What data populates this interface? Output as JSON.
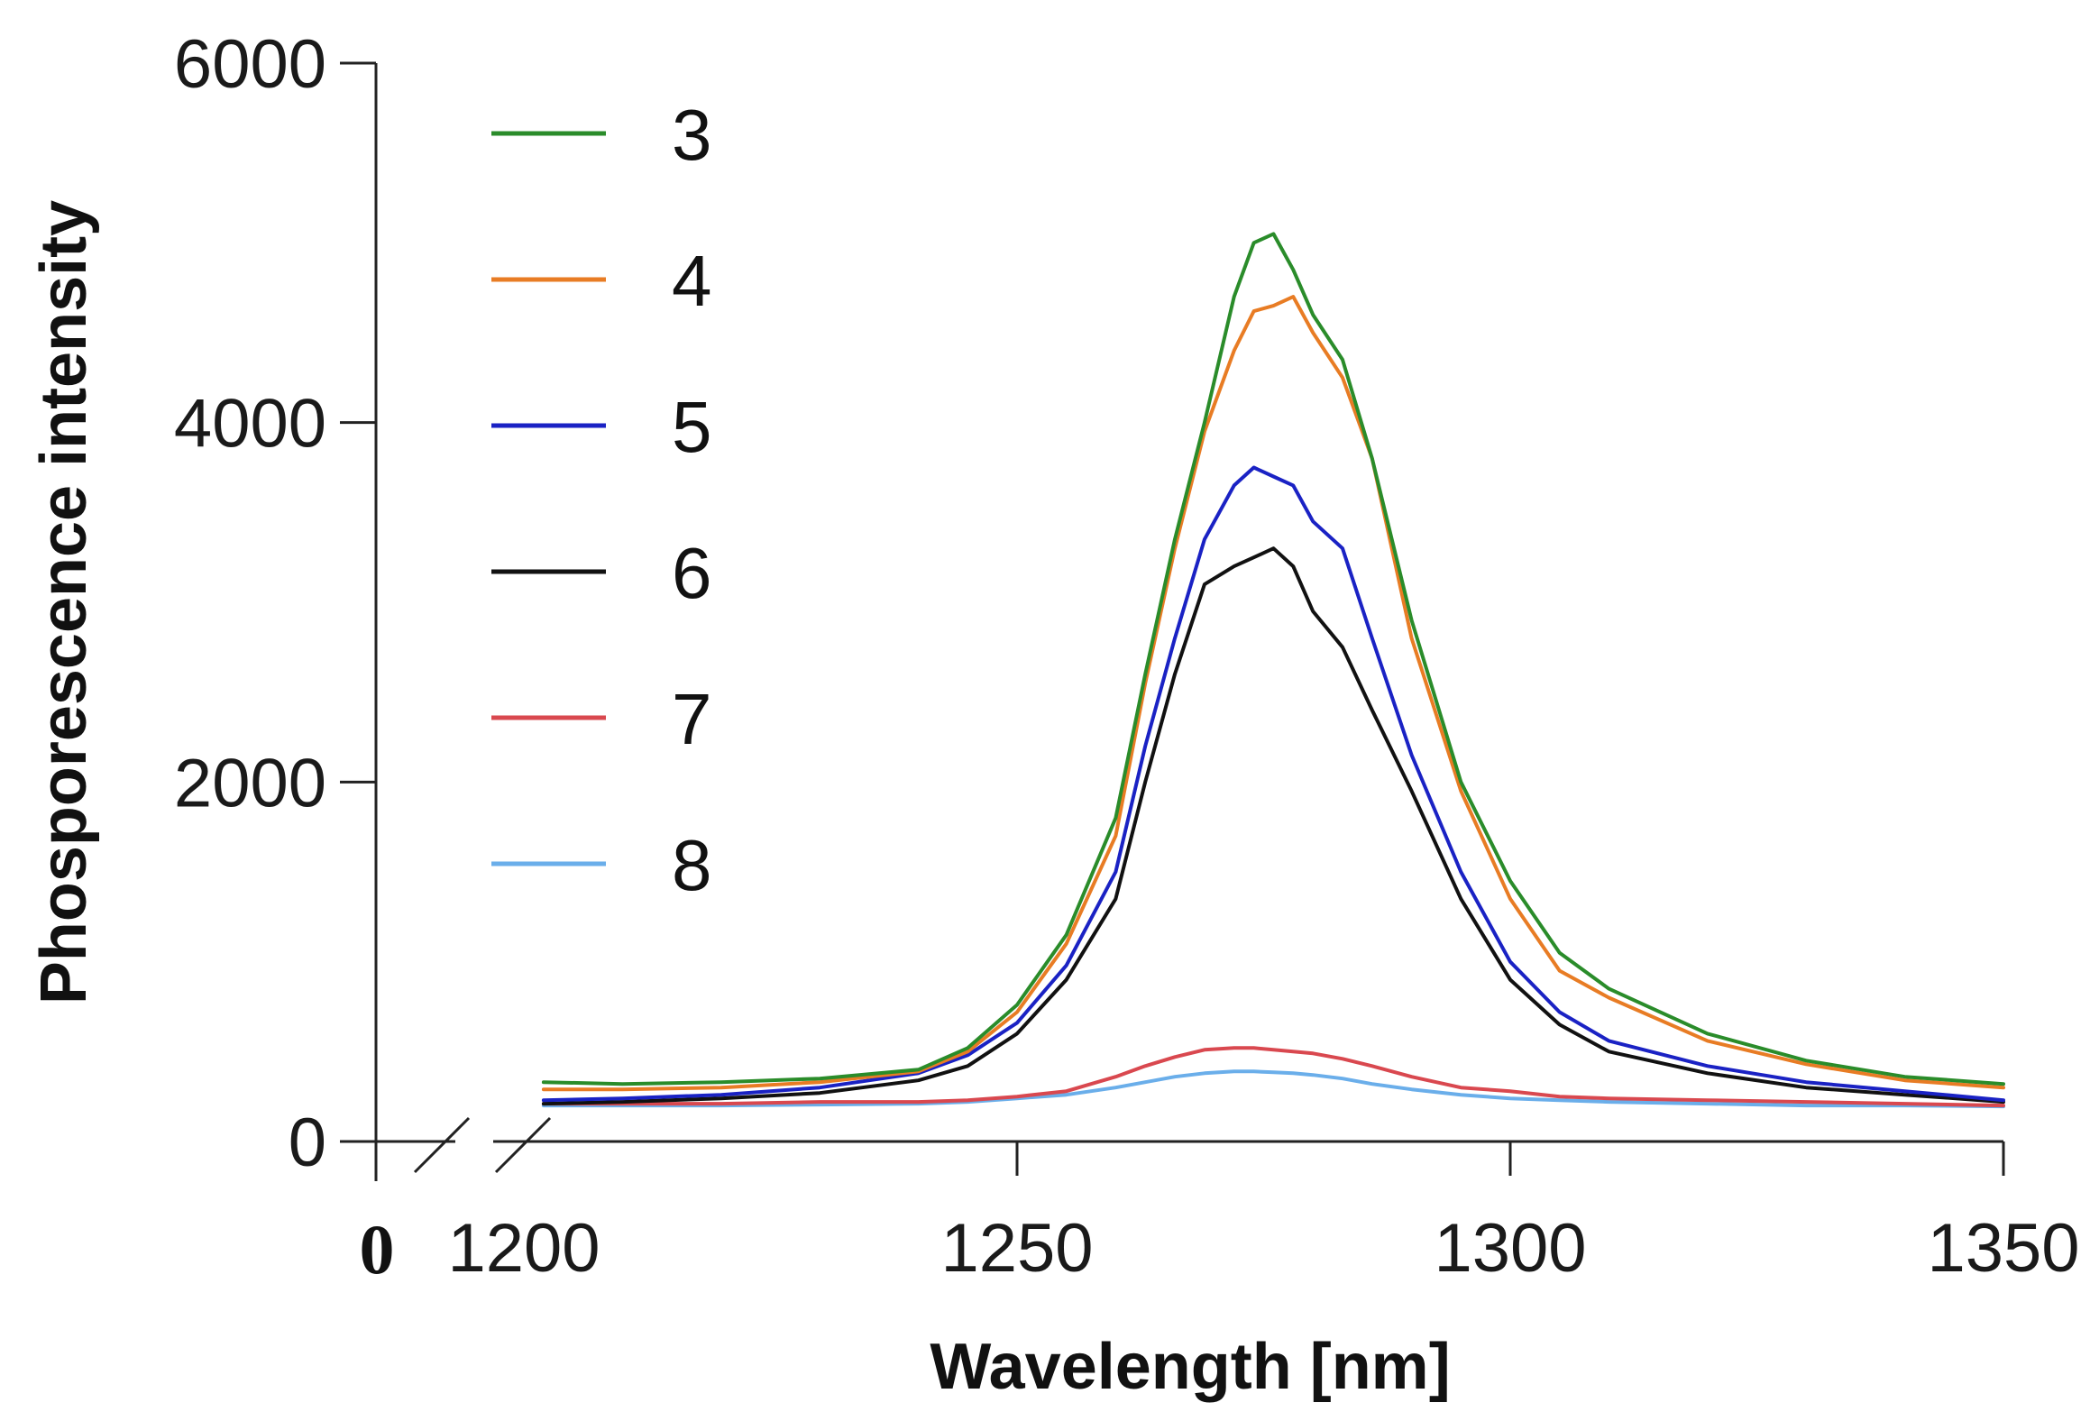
{
  "chart_data": {
    "type": "line",
    "title": "",
    "xlabel": "Wavelength [nm]",
    "ylabel": "Phosporescence intensity",
    "xlim": [
      1200,
      1350
    ],
    "ylim": [
      0,
      6000
    ],
    "x_axis_break": true,
    "x_break_label": "0",
    "x_ticks": [
      1200,
      1250,
      1300,
      1350
    ],
    "x_tick_labels": [
      "1200",
      "1250",
      "1300",
      "1350"
    ],
    "y_ticks": [
      0,
      2000,
      4000,
      6000
    ],
    "y_tick_labels": [
      "0",
      "2000",
      "4000",
      "6000"
    ],
    "grid": false,
    "legend_position": "top-left",
    "x": [
      1202,
      1210,
      1220,
      1230,
      1240,
      1245,
      1250,
      1255,
      1260,
      1263,
      1266,
      1269,
      1272,
      1274,
      1276,
      1278,
      1280,
      1283,
      1286,
      1290,
      1295,
      1300,
      1305,
      1310,
      1320,
      1330,
      1340,
      1350
    ],
    "series": [
      {
        "name": "3",
        "color": "#2a8c2a",
        "values": [
          330,
          320,
          330,
          350,
          400,
          520,
          760,
          1150,
          1800,
          2600,
          3350,
          4000,
          4700,
          5000,
          5050,
          4850,
          4600,
          4350,
          3800,
          2900,
          2000,
          1450,
          1050,
          850,
          600,
          450,
          360,
          320
        ]
      },
      {
        "name": "4",
        "color": "#e87c24",
        "values": [
          290,
          290,
          300,
          330,
          390,
          500,
          720,
          1100,
          1700,
          2550,
          3300,
          3950,
          4400,
          4620,
          4650,
          4700,
          4500,
          4250,
          3800,
          2800,
          1950,
          1350,
          950,
          800,
          560,
          430,
          340,
          300
        ]
      },
      {
        "name": "5",
        "color": "#1a22c4",
        "values": [
          230,
          240,
          260,
          300,
          380,
          480,
          660,
          980,
          1500,
          2200,
          2800,
          3350,
          3650,
          3750,
          3700,
          3650,
          3450,
          3300,
          2800,
          2150,
          1500,
          1000,
          720,
          560,
          420,
          330,
          280,
          230
        ]
      },
      {
        "name": "6",
        "color": "#111111",
        "values": [
          210,
          220,
          240,
          270,
          340,
          420,
          600,
          900,
          1350,
          2000,
          2600,
          3100,
          3200,
          3250,
          3300,
          3200,
          2950,
          2750,
          2400,
          1950,
          1350,
          900,
          650,
          500,
          380,
          300,
          260,
          220
        ]
      },
      {
        "name": "7",
        "color": "#d9484f",
        "values": [
          210,
          210,
          210,
          220,
          220,
          230,
          250,
          280,
          360,
          420,
          470,
          510,
          520,
          520,
          510,
          500,
          490,
          460,
          420,
          360,
          300,
          280,
          250,
          240,
          230,
          220,
          210,
          200
        ]
      },
      {
        "name": "8",
        "color": "#6aaeea",
        "values": [
          200,
          200,
          200,
          205,
          210,
          220,
          240,
          260,
          300,
          330,
          360,
          380,
          390,
          390,
          385,
          380,
          370,
          350,
          320,
          290,
          260,
          240,
          230,
          220,
          210,
          200,
          200,
          195
        ]
      }
    ]
  }
}
